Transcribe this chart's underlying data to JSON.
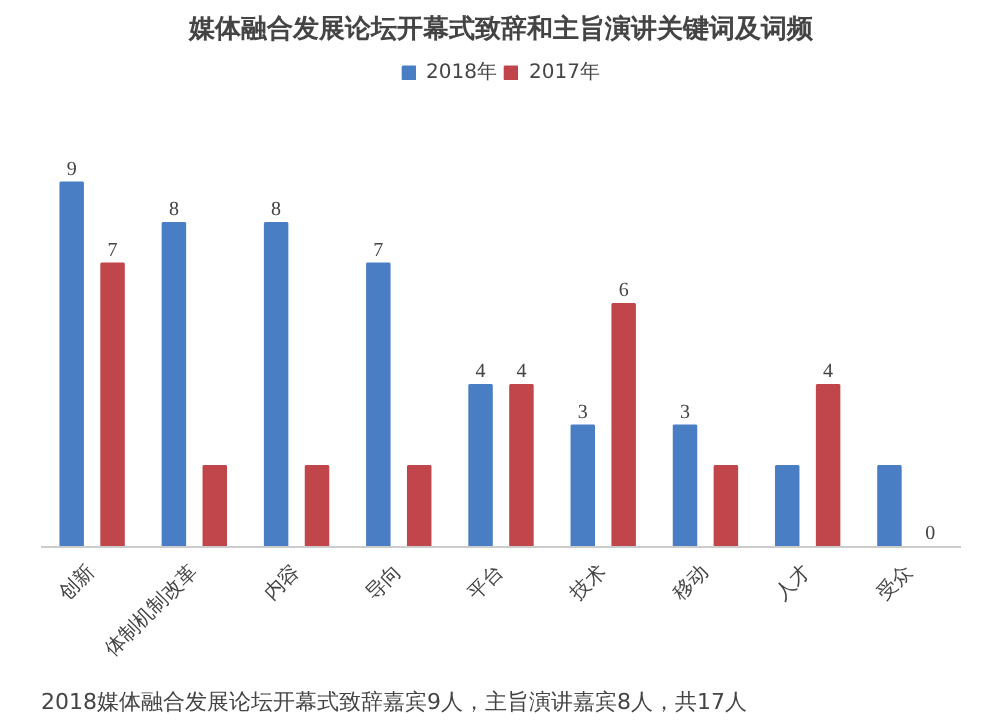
{
  "chart_data": {
    "type": "bar",
    "title": "媒体融合发展论坛开幕式致辞和主旨演讲关键词及词频",
    "categories": [
      "创新",
      "体制机制改革",
      "内容",
      "导向",
      "平台",
      "技术",
      "移动",
      "人才",
      "受众"
    ],
    "series": [
      {
        "name": "2018年",
        "color": "#4a7ec4",
        "values": [
          9,
          8,
          8,
          7,
          4,
          3,
          3,
          2,
          2
        ],
        "value_labels": [
          "9",
          "8",
          "8",
          "7",
          "4",
          "3",
          "3",
          null,
          null
        ]
      },
      {
        "name": "2017年",
        "color": "#c0464c",
        "values": [
          7,
          2,
          2,
          2,
          4,
          6,
          2,
          4,
          0
        ],
        "value_labels": [
          "7",
          null,
          null,
          null,
          "4",
          "6",
          null,
          "4",
          "0"
        ]
      }
    ],
    "legend": "top",
    "annotations": [
      "2018媒体融合发展论坛开幕式致辞嘉宾9人，主旨演讲嘉宾8人，共17人"
    ]
  }
}
